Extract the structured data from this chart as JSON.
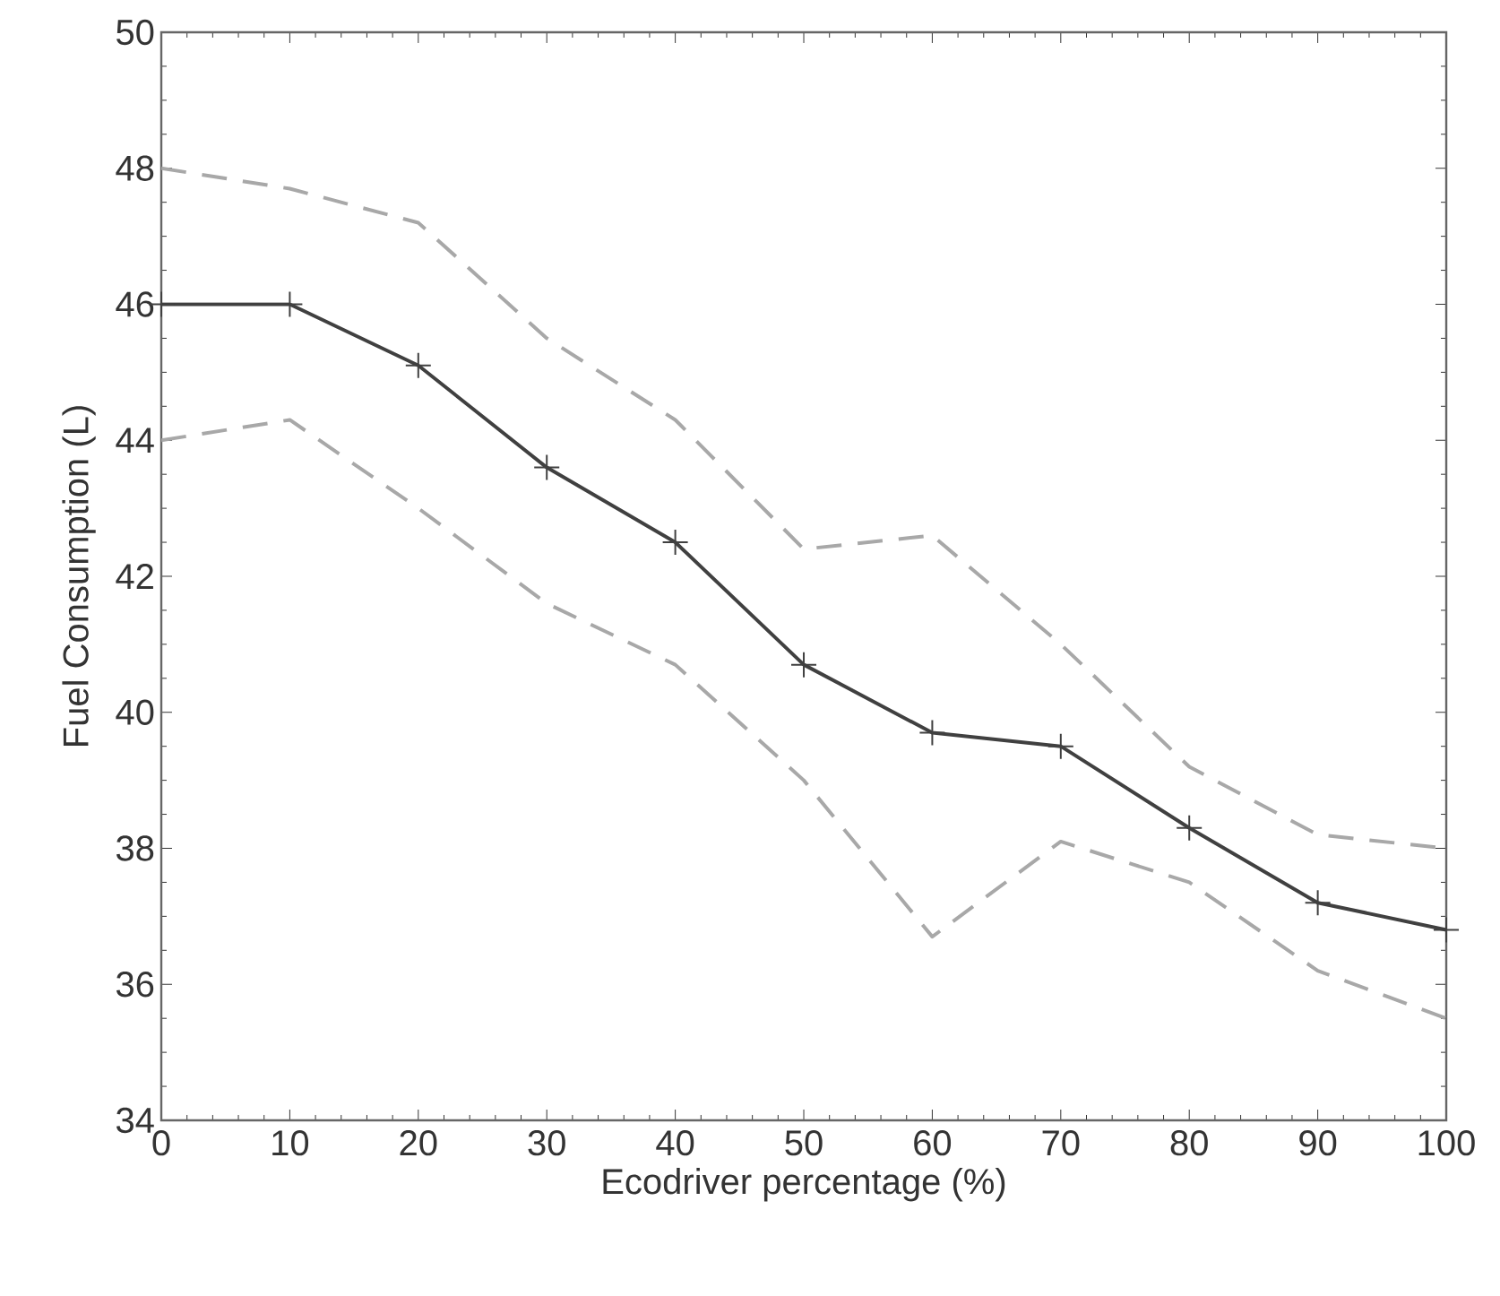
{
  "chart_data": {
    "type": "line",
    "xlabel": "Ecodriver percentage (%)",
    "ylabel": "Fuel Consumption (L)",
    "x": [
      0,
      10,
      20,
      30,
      40,
      50,
      60,
      70,
      80,
      90,
      100
    ],
    "xlim": [
      0,
      100
    ],
    "xticks": [
      0,
      10,
      20,
      30,
      40,
      50,
      60,
      70,
      80,
      90,
      100
    ],
    "ylim": [
      34,
      50
    ],
    "yticks": [
      34,
      36,
      38,
      40,
      42,
      44,
      46,
      48,
      50
    ],
    "series": [
      {
        "color": "#a8a8a8",
        "line_style": "dashed",
        "marker": "none",
        "values": [
          48,
          47.7,
          47.2,
          45.5,
          44.3,
          42.4,
          42.6,
          41,
          39.2,
          38.2,
          38
        ]
      },
      {
        "color": "#404040",
        "line_style": "solid",
        "marker": "cross",
        "values": [
          46,
          46,
          45.1,
          43.6,
          42.5,
          40.7,
          39.7,
          39.5,
          38.3,
          37.2,
          36.8
        ]
      },
      {
        "color": "#a8a8a8",
        "line_style": "dashed",
        "marker": "none",
        "values": [
          44,
          44.3,
          43,
          41.6,
          40.7,
          39,
          36.7,
          38.1,
          37.5,
          36.2,
          35.5
        ]
      }
    ]
  }
}
